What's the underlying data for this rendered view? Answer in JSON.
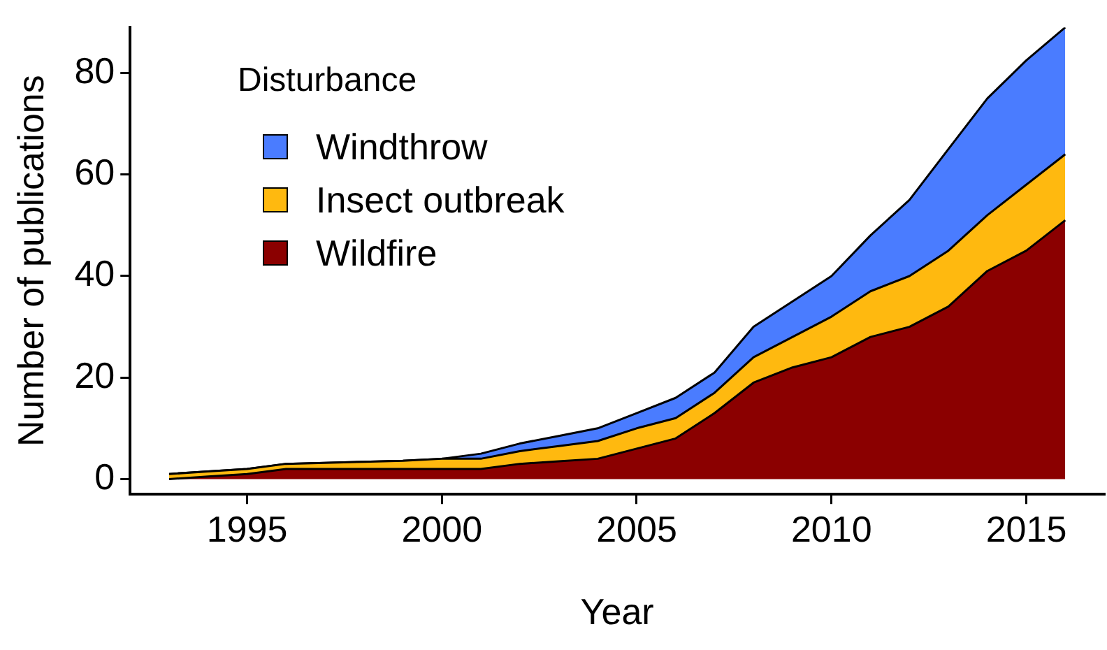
{
  "chart_data": {
    "type": "area",
    "stacked": true,
    "xlabel": "Year",
    "ylabel": "Number of publications",
    "legend_title": "Disturbance",
    "legend": "top left",
    "grid": false,
    "marker": "none",
    "x": [
      1993,
      1994,
      1995,
      1996,
      1997,
      1998,
      1999,
      2000,
      2001,
      2002,
      2003,
      2004,
      2005,
      2006,
      2007,
      2008,
      2009,
      2010,
      2011,
      2012,
      2013,
      2014,
      2015,
      2016
    ],
    "xlim": [
      1992,
      2017
    ],
    "xticks": [
      1995,
      2000,
      2005,
      2010,
      2015
    ],
    "ylim": [
      -3,
      89
    ],
    "yticks": [
      0,
      20,
      40,
      60,
      80
    ],
    "series": [
      {
        "name": "Wildfire",
        "color": "#8b0000",
        "values": [
          0,
          0.5,
          1,
          2,
          2,
          2,
          2,
          2,
          2,
          3,
          3.5,
          4,
          6,
          8,
          13,
          19,
          22,
          24,
          28,
          30,
          34,
          41,
          45,
          51
        ]
      },
      {
        "name": "Insect outbreak",
        "color": "#ffb90f",
        "values": [
          1,
          1,
          1,
          1,
          1.2,
          1.4,
          1.6,
          2,
          2,
          2.5,
          3,
          3.5,
          4,
          4,
          4,
          5,
          6,
          8,
          9,
          10,
          11,
          11,
          13,
          13
        ]
      },
      {
        "name": "Windthrow",
        "color": "#4a7cff",
        "values": [
          0,
          0,
          0,
          0,
          0,
          0,
          0,
          0,
          1,
          1.5,
          2,
          2.5,
          3,
          4,
          4,
          6,
          7,
          8,
          11,
          15,
          20,
          23,
          24.5,
          25
        ]
      }
    ]
  }
}
